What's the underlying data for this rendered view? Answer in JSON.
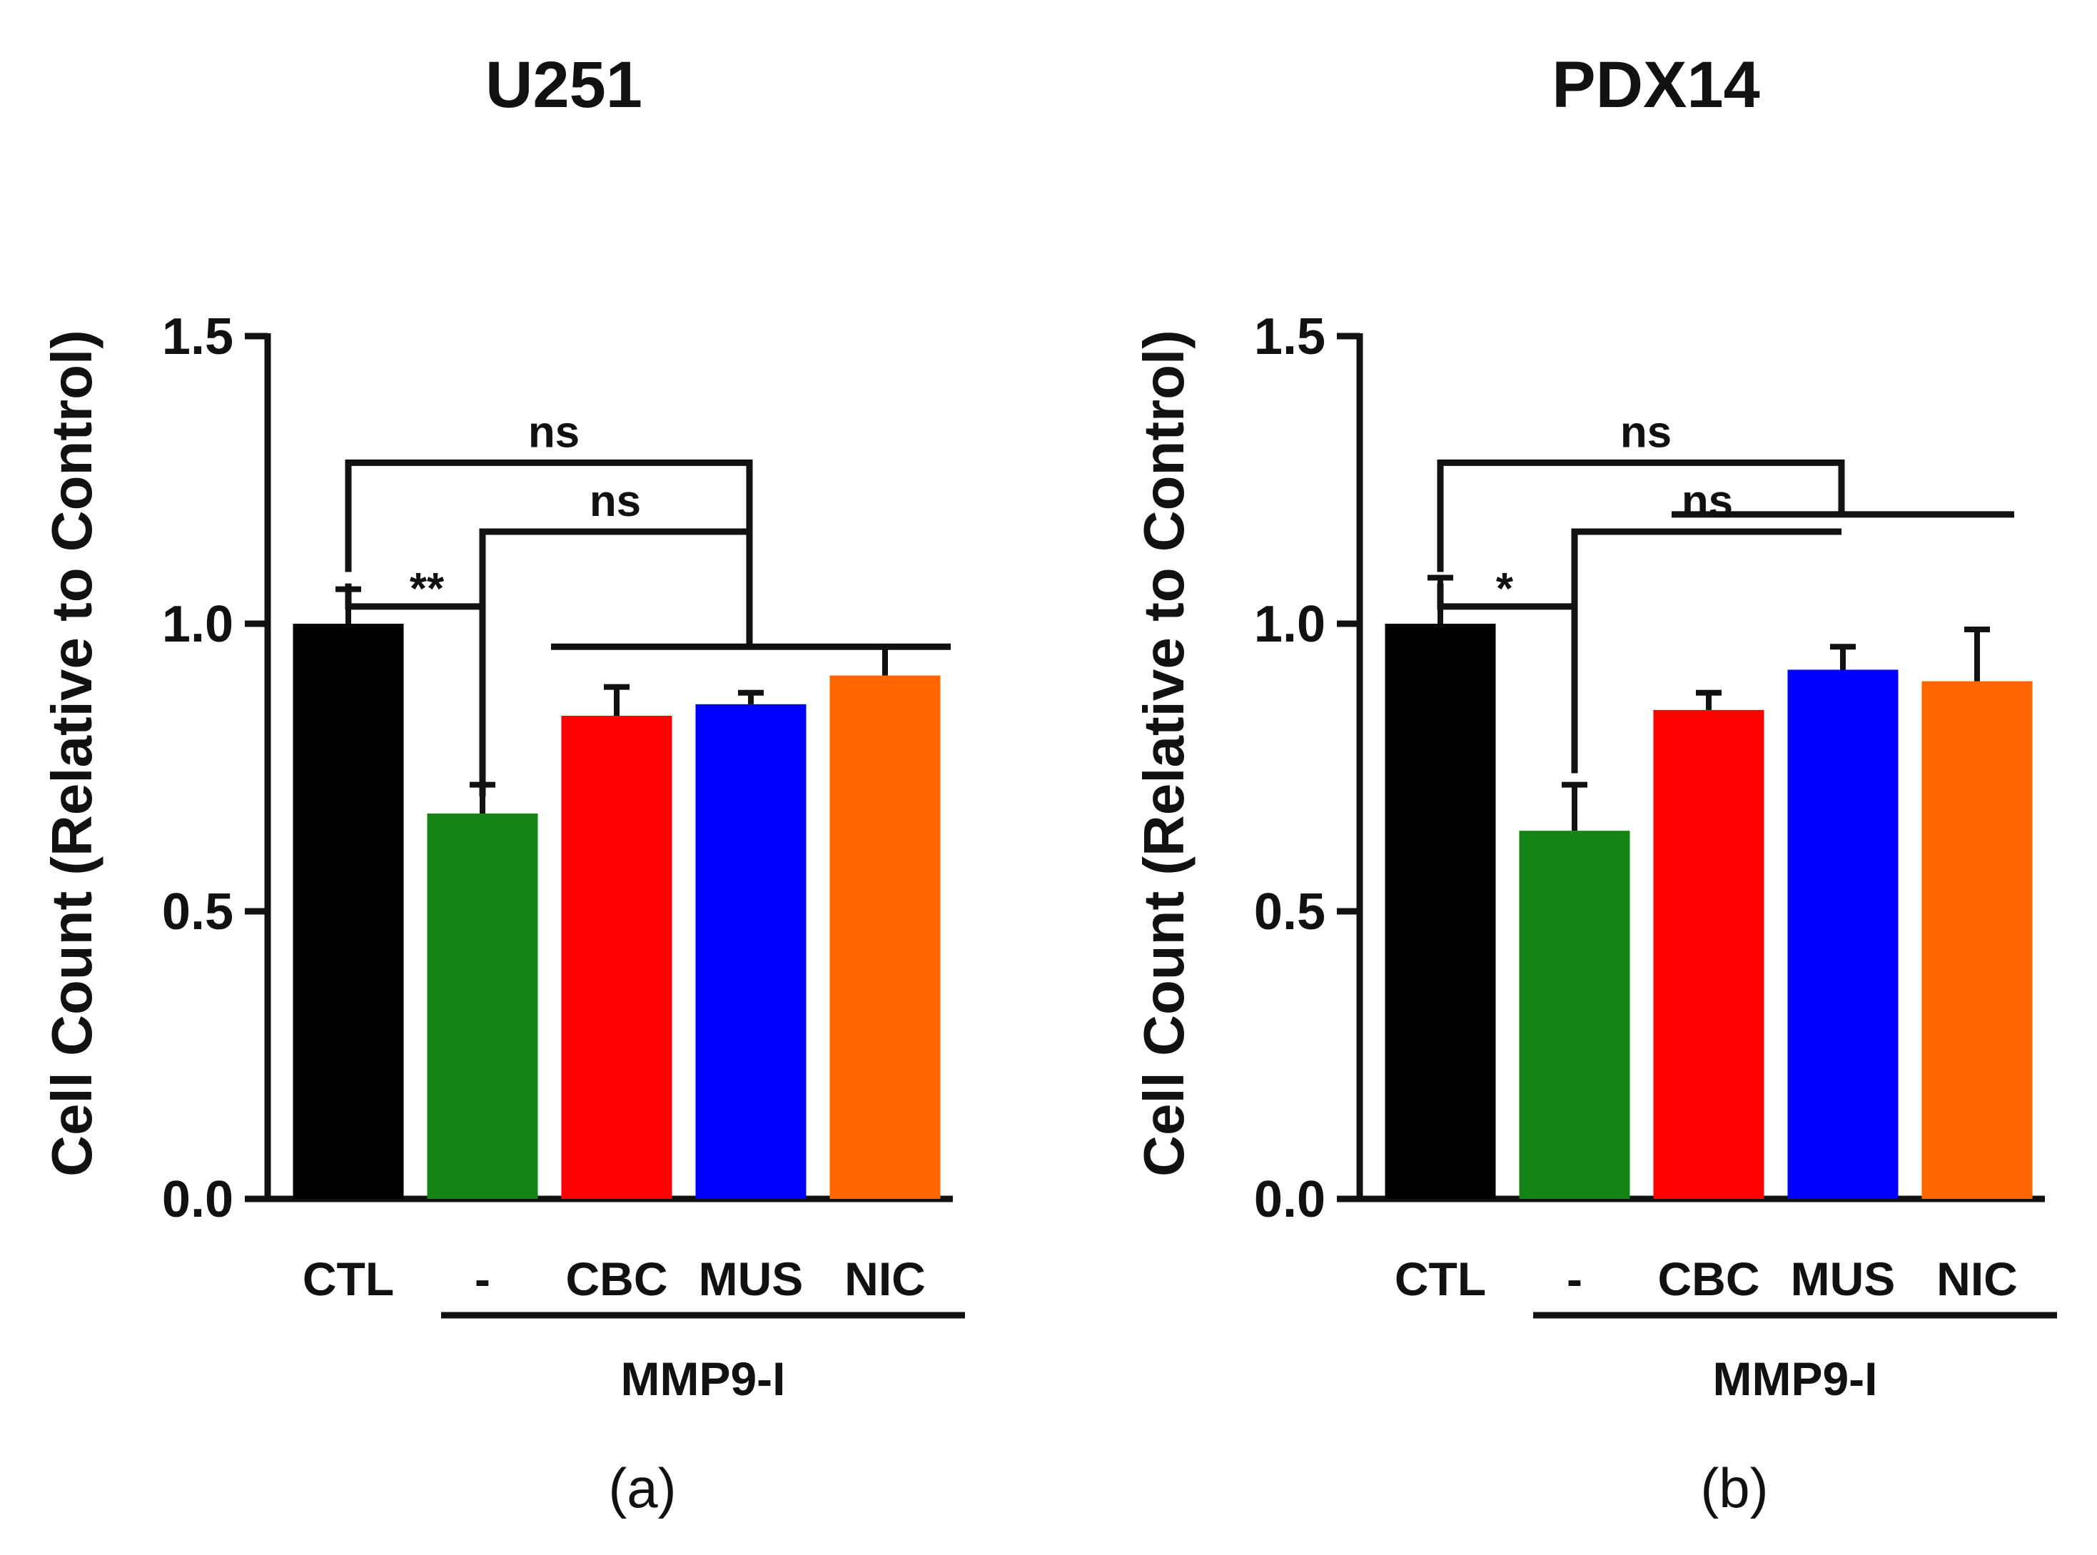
{
  "chart_data": [
    {
      "type": "bar",
      "panel_label": "(a)",
      "title": "U251",
      "xlabel": "",
      "ylabel": "Cell Count (Relative to Control)",
      "ylim": [
        0,
        1.5
      ],
      "yticks": [
        0.0,
        0.5,
        1.0,
        1.5
      ],
      "ytick_labels": [
        "0.0",
        "0.5",
        "1.0",
        "1.5"
      ],
      "categories": [
        "CTL",
        "-",
        "CBC",
        "MUS",
        "NIC"
      ],
      "values": [
        1.0,
        0.67,
        0.84,
        0.86,
        0.91
      ],
      "errors": [
        0.06,
        0.05,
        0.05,
        0.02,
        0.05
      ],
      "colors": [
        "#000000",
        "#138313",
        "#ff0000",
        "#0000ff",
        "#ff6600"
      ],
      "group_label": "MMP9-I",
      "annotations": [
        "ns",
        "ns",
        "**"
      ]
    },
    {
      "type": "bar",
      "panel_label": "(b)",
      "title": "PDX14",
      "xlabel": "",
      "ylabel": "Cell Count (Relative to Control)",
      "ylim": [
        0,
        1.5
      ],
      "yticks": [
        0.0,
        0.5,
        1.0,
        1.5
      ],
      "ytick_labels": [
        "0.0",
        "0.5",
        "1.0",
        "1.5"
      ],
      "categories": [
        "CTL",
        "-",
        "CBC",
        "MUS",
        "NIC"
      ],
      "values": [
        1.0,
        0.64,
        0.85,
        0.92,
        0.9
      ],
      "errors": [
        0.08,
        0.08,
        0.03,
        0.04,
        0.09
      ],
      "colors": [
        "#000000",
        "#138313",
        "#ff0000",
        "#0000ff",
        "#ff6600"
      ],
      "group_label": "MMP9-I",
      "annotations": [
        "ns",
        "ns",
        "*"
      ]
    }
  ]
}
